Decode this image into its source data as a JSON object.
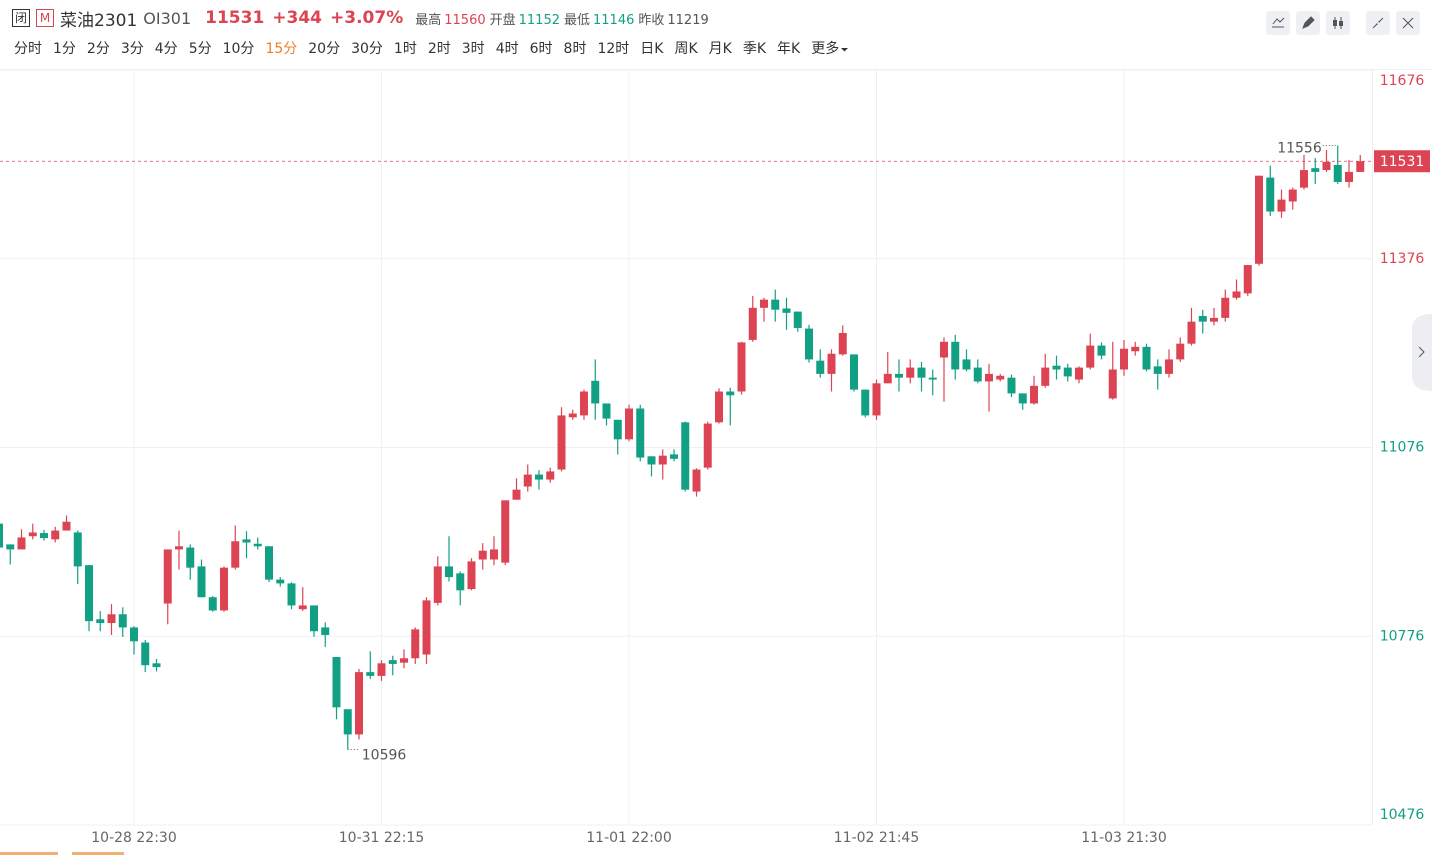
{
  "quote": {
    "status": "闭",
    "market_badge": "M",
    "name": "菜油2301",
    "code": "OI301",
    "last": 11531,
    "change": "+344",
    "change_pct": "+3.07%",
    "stats": [
      {
        "label": "最高",
        "value": 11560
      },
      {
        "label": "开盘",
        "value": 11152
      },
      {
        "label": "最低",
        "value": 11146
      },
      {
        "label": "昨收",
        "value": 11219
      }
    ]
  },
  "periods": [
    "分时",
    "1分",
    "2分",
    "3分",
    "4分",
    "5分",
    "10分",
    "15分",
    "20分",
    "30分",
    "1时",
    "2时",
    "3时",
    "4时",
    "6时",
    "8时",
    "12时",
    "日K",
    "周K",
    "月K",
    "季K",
    "年K",
    "更多"
  ],
  "active_period_index": 7,
  "chart_data": {
    "type": "candlestick",
    "up_color": "#dd4453",
    "down_color": "#12a085",
    "grid": true,
    "ylim": [
      10476,
      11676
    ],
    "yticks": [
      10476,
      10776,
      11076,
      11376,
      11676
    ],
    "reference_price": 11219,
    "last_price": 11531,
    "max_label": 11556,
    "min_label": 10596,
    "categories": [
      null,
      null,
      null,
      null,
      null,
      null,
      null,
      null,
      null,
      null,
      null,
      null,
      "10-28 22:30",
      null,
      null,
      null,
      null,
      null,
      null,
      null,
      null,
      null,
      null,
      null,
      null,
      null,
      null,
      null,
      null,
      null,
      null,
      null,
      null,
      null,
      "10-31 22:15",
      null,
      null,
      null,
      null,
      null,
      null,
      null,
      null,
      null,
      null,
      null,
      null,
      null,
      null,
      null,
      null,
      null,
      null,
      null,
      null,
      null,
      "11-01 22:00",
      null,
      null,
      null,
      null,
      null,
      null,
      null,
      null,
      null,
      null,
      null,
      null,
      null,
      null,
      null,
      null,
      null,
      null,
      null,
      null,
      null,
      "11-02 21:45",
      null,
      null,
      null,
      null,
      null,
      null,
      null,
      null,
      null,
      null,
      null,
      null,
      null,
      null,
      null,
      null,
      null,
      null,
      null,
      null,
      null,
      "11-03 21:30",
      null,
      null,
      null,
      null,
      null,
      null,
      null,
      null,
      null,
      null,
      null,
      null,
      null,
      null,
      null,
      null,
      null,
      null,
      null,
      null,
      null
    ],
    "open": [
      10955,
      10922,
      10914,
      10935,
      10940,
      10930,
      10944,
      10941,
      10889,
      10803,
      10797,
      10811,
      10790,
      10766,
      10733,
      10828,
      10914,
      10917,
      10887,
      10838,
      10817,
      10885,
      10930,
      10923,
      10919,
      10866,
      10860,
      10819,
      10825,
      10790,
      10743,
      10660,
      10620,
      10719,
      10713,
      10738,
      10734,
      10741,
      10747,
      10829,
      10887,
      10876,
      10851,
      10898,
      10898,
      10893,
      10993,
      11014,
      11033,
      11025,
      11041,
      11124,
      11127,
      11182,
      11146,
      11120,
      11089,
      11138,
      11062,
      11049,
      11065,
      11116,
      11006,
      11044,
      11116,
      11165,
      11165,
      11247,
      11298,
      11311,
      11297,
      11292,
      11265,
      11214,
      11193,
      11224,
      11224,
      11168,
      11127,
      11178,
      11193,
      11187,
      11203,
      11187,
      11219,
      11244,
      11216,
      11203,
      11181,
      11184,
      11187,
      11162,
      11146,
      11174,
      11206,
      11203,
      11184,
      11203,
      11238,
      11154,
      11200,
      11229,
      11236,
      11205,
      11193,
      11216,
      11241,
      11285,
      11276,
      11282,
      11314,
      11321,
      11368,
      11505,
      11451,
      11467,
      11489,
      11520,
      11517,
      11525,
      11498,
      11514
    ],
    "high": [
      10955,
      10922,
      10946,
      10955,
      10945,
      10950,
      10968,
      10944,
      10889,
      10816,
      10827,
      10822,
      10792,
      10770,
      10740,
      10914,
      10944,
      10922,
      10898,
      10840,
      10887,
      10952,
      10943,
      10933,
      10919,
      10870,
      10862,
      10854,
      10825,
      10798,
      10743,
      10660,
      10724,
      10752,
      10738,
      10745,
      10755,
      10790,
      10838,
      10903,
      10935,
      10879,
      10900,
      10924,
      10935,
      10992,
      11027,
      11049,
      11040,
      11044,
      11140,
      11136,
      11168,
      11216,
      11146,
      11120,
      11144,
      11144,
      11062,
      11073,
      11073,
      11117,
      11043,
      11117,
      11170,
      11171,
      11244,
      11317,
      11314,
      11327,
      11314,
      11292,
      11271,
      11232,
      11232,
      11270,
      11224,
      11168,
      11184,
      11228,
      11216,
      11216,
      11212,
      11200,
      11251,
      11255,
      11232,
      11216,
      11209,
      11193,
      11192,
      11162,
      11190,
      11225,
      11222,
      11209,
      11205,
      11257,
      11243,
      11244,
      11247,
      11244,
      11241,
      11216,
      11232,
      11251,
      11298,
      11295,
      11298,
      11327,
      11343,
      11366,
      11508,
      11524,
      11486,
      11489,
      11541,
      11536,
      11549,
      11556,
      11533,
      11541
    ],
    "low": [
      10917,
      10890,
      10914,
      10930,
      10928,
      10925,
      10944,
      10859,
      10784,
      10784,
      10778,
      10775,
      10747,
      10719,
      10720,
      10795,
      10882,
      10866,
      10838,
      10815,
      10815,
      10882,
      10900,
      10914,
      10862,
      10855,
      10819,
      10816,
      10775,
      10759,
      10644,
      10596,
      10612,
      10708,
      10705,
      10714,
      10725,
      10732,
      10732,
      10825,
      10863,
      10825,
      10849,
      10882,
      10889,
      10889,
      10993,
      11006,
      11009,
      11020,
      11038,
      11120,
      11120,
      11120,
      11111,
      11065,
      11086,
      11054,
      11030,
      11025,
      11054,
      11006,
      10998,
      11041,
      11114,
      11111,
      11160,
      11244,
      11276,
      11276,
      11263,
      11260,
      11211,
      11187,
      11165,
      11222,
      11165,
      11124,
      11120,
      11178,
      11165,
      11178,
      11165,
      11159,
      11149,
      11184,
      11197,
      11178,
      11133,
      11181,
      11156,
      11136,
      11144,
      11171,
      11184,
      11181,
      11178,
      11200,
      11216,
      11152,
      11190,
      11222,
      11197,
      11168,
      11187,
      11212,
      11238,
      11257,
      11270,
      11276,
      11311,
      11317,
      11365,
      11444,
      11441,
      11454,
      11486,
      11495,
      11514,
      11495,
      11489,
      11514
    ],
    "close": [
      10917,
      10914,
      10933,
      10941,
      10932,
      10944,
      10958,
      10887,
      10800,
      10797,
      10811,
      10790,
      10768,
      10730,
      10727,
      10914,
      10919,
      10885,
      10838,
      10817,
      10885,
      10927,
      10925,
      10919,
      10866,
      10860,
      10825,
      10825,
      10784,
      10778,
      10663,
      10620,
      10719,
      10713,
      10733,
      10732,
      10741,
      10787,
      10833,
      10887,
      10870,
      10849,
      10895,
      10912,
      10914,
      10992,
      11009,
      11033,
      11025,
      11038,
      11127,
      11130,
      11165,
      11146,
      11122,
      11089,
      11138,
      11060,
      11049,
      11063,
      11058,
      11009,
      11041,
      11114,
      11165,
      11159,
      11243,
      11298,
      11311,
      11295,
      11290,
      11266,
      11216,
      11193,
      11225,
      11258,
      11168,
      11127,
      11178,
      11193,
      11187,
      11203,
      11187,
      11184,
      11244,
      11200,
      11200,
      11181,
      11193,
      11190,
      11162,
      11146,
      11174,
      11203,
      11200,
      11189,
      11203,
      11238,
      11222,
      11200,
      11233,
      11236,
      11200,
      11193,
      11216,
      11241,
      11276,
      11276,
      11282,
      11314,
      11324,
      11366,
      11508,
      11451,
      11470,
      11486,
      11517,
      11514,
      11530,
      11498,
      11514,
      11531
    ]
  }
}
